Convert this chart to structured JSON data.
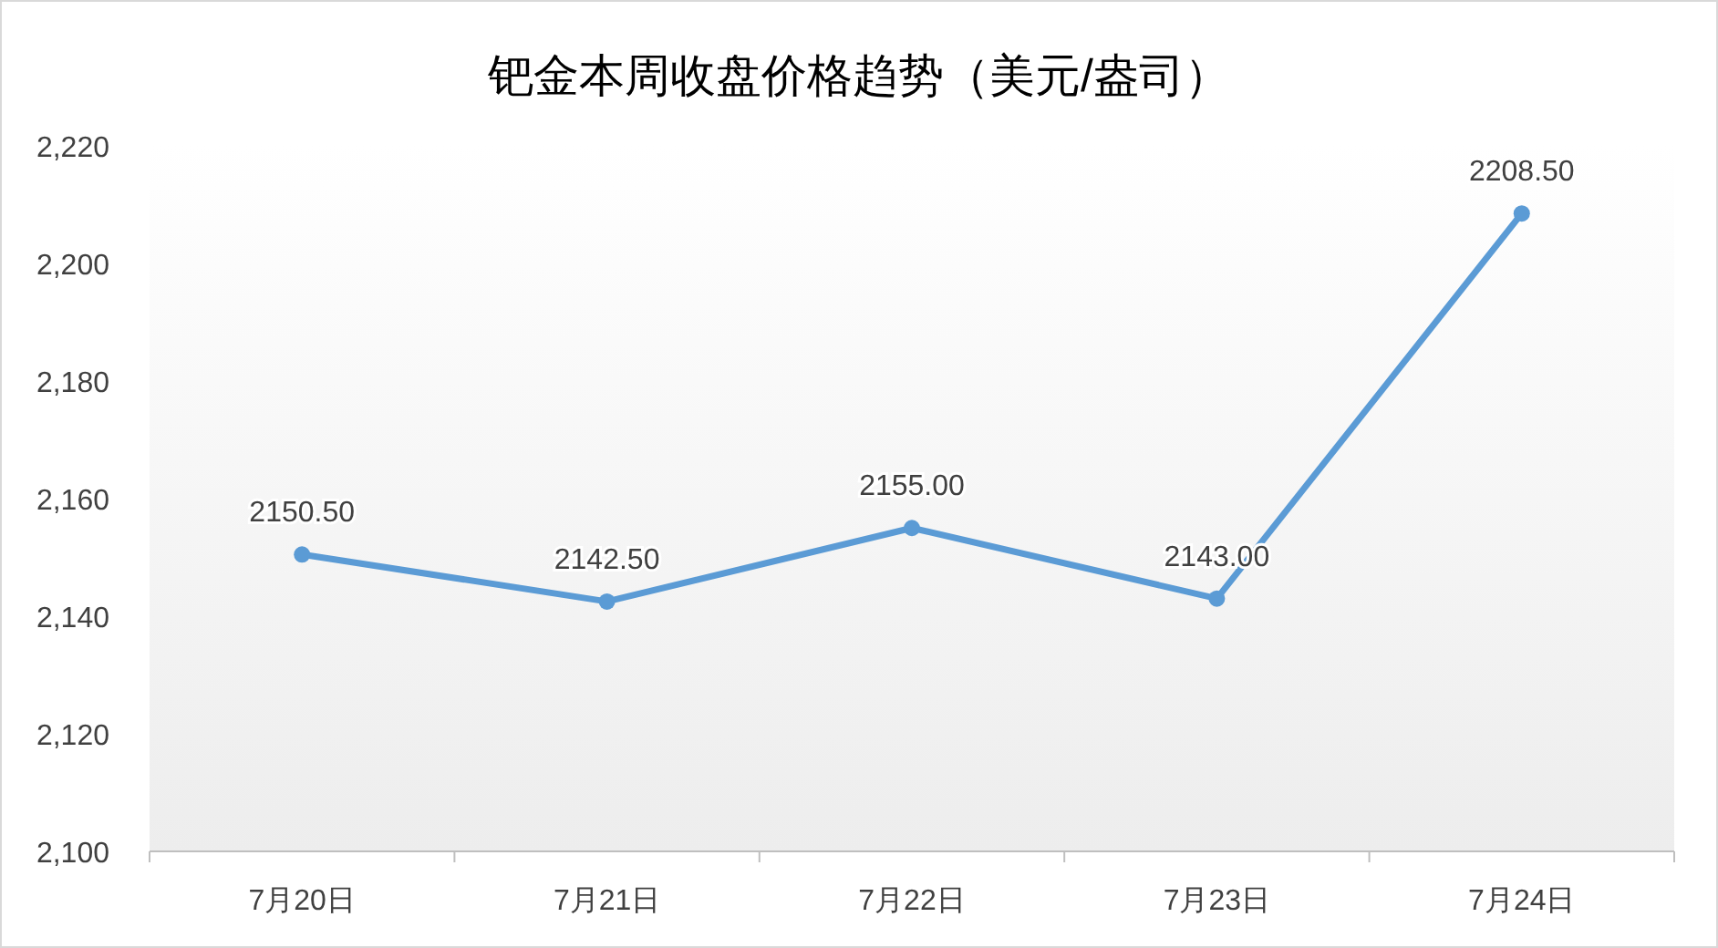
{
  "chart_data": {
    "type": "line",
    "title": "钯金本周收盘价格趋势（美元/盎司）",
    "categories": [
      "7月20日",
      "7月21日",
      "7月22日",
      "7月23日",
      "7月24日"
    ],
    "series": [
      {
        "color": "#5b9bd5",
        "values": [
          2150.5,
          2142.5,
          2155.0,
          2143.0,
          2208.5
        ]
      }
    ],
    "value_labels": [
      "2150.50",
      "2142.50",
      "2155.00",
      "2143.00",
      "2208.50"
    ],
    "ylim": [
      2100,
      2220
    ],
    "yticks": [
      {
        "value": 2100,
        "label": "2,100"
      },
      {
        "value": 2120,
        "label": "2,120"
      },
      {
        "value": 2140,
        "label": "2,140"
      },
      {
        "value": 2160,
        "label": "2,160"
      },
      {
        "value": 2180,
        "label": "2,180"
      },
      {
        "value": 2200,
        "label": "2,200"
      },
      {
        "value": 2220,
        "label": "2,220"
      }
    ],
    "grid": false,
    "marker": "circle",
    "line_style": "solid"
  }
}
